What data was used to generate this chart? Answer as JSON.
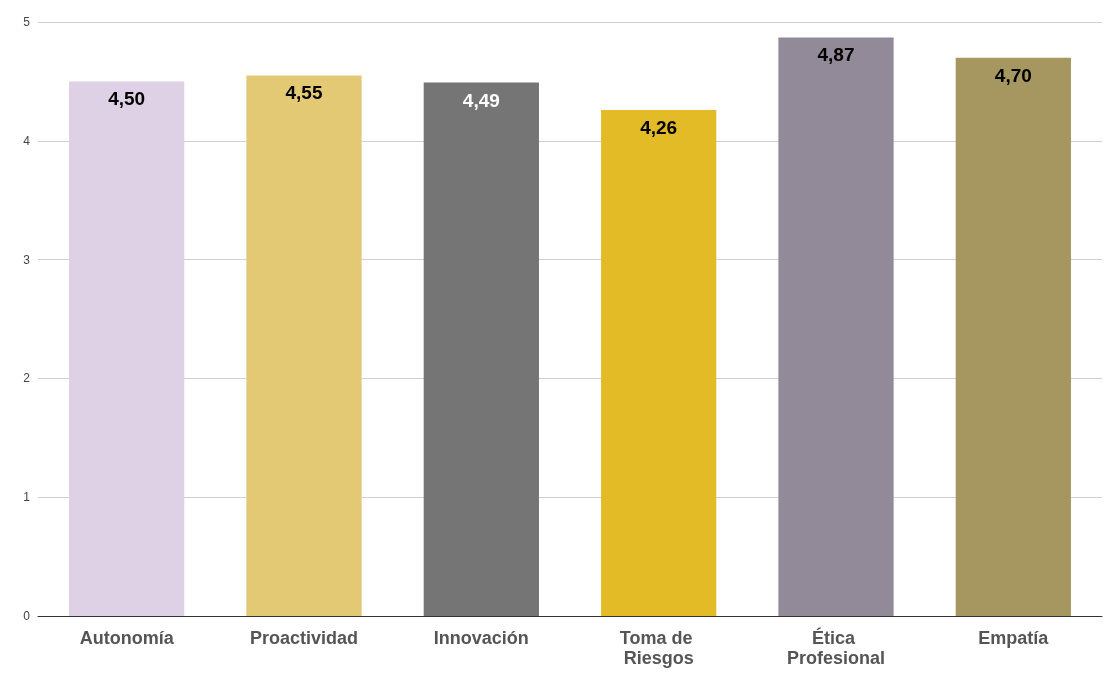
{
  "chart_data": {
    "type": "bar",
    "categories": [
      "Autonomía",
      "Proactividad",
      "Innovación",
      "Toma de Riesgos",
      "Ética Profesional",
      "Empatía"
    ],
    "values": [
      4.5,
      4.55,
      4.49,
      4.26,
      4.87,
      4.7
    ],
    "value_labels": [
      "4,50",
      "4,55",
      "4,49",
      "4,26",
      "4,87",
      "4,70"
    ],
    "colors": [
      "#ded0e5",
      "#e4c975",
      "#757575",
      "#e2bb27",
      "#928a99",
      "#a69760"
    ],
    "ylim": [
      0,
      5
    ],
    "yticks": [
      0,
      1,
      2,
      3,
      4,
      5
    ],
    "grid": "y"
  }
}
